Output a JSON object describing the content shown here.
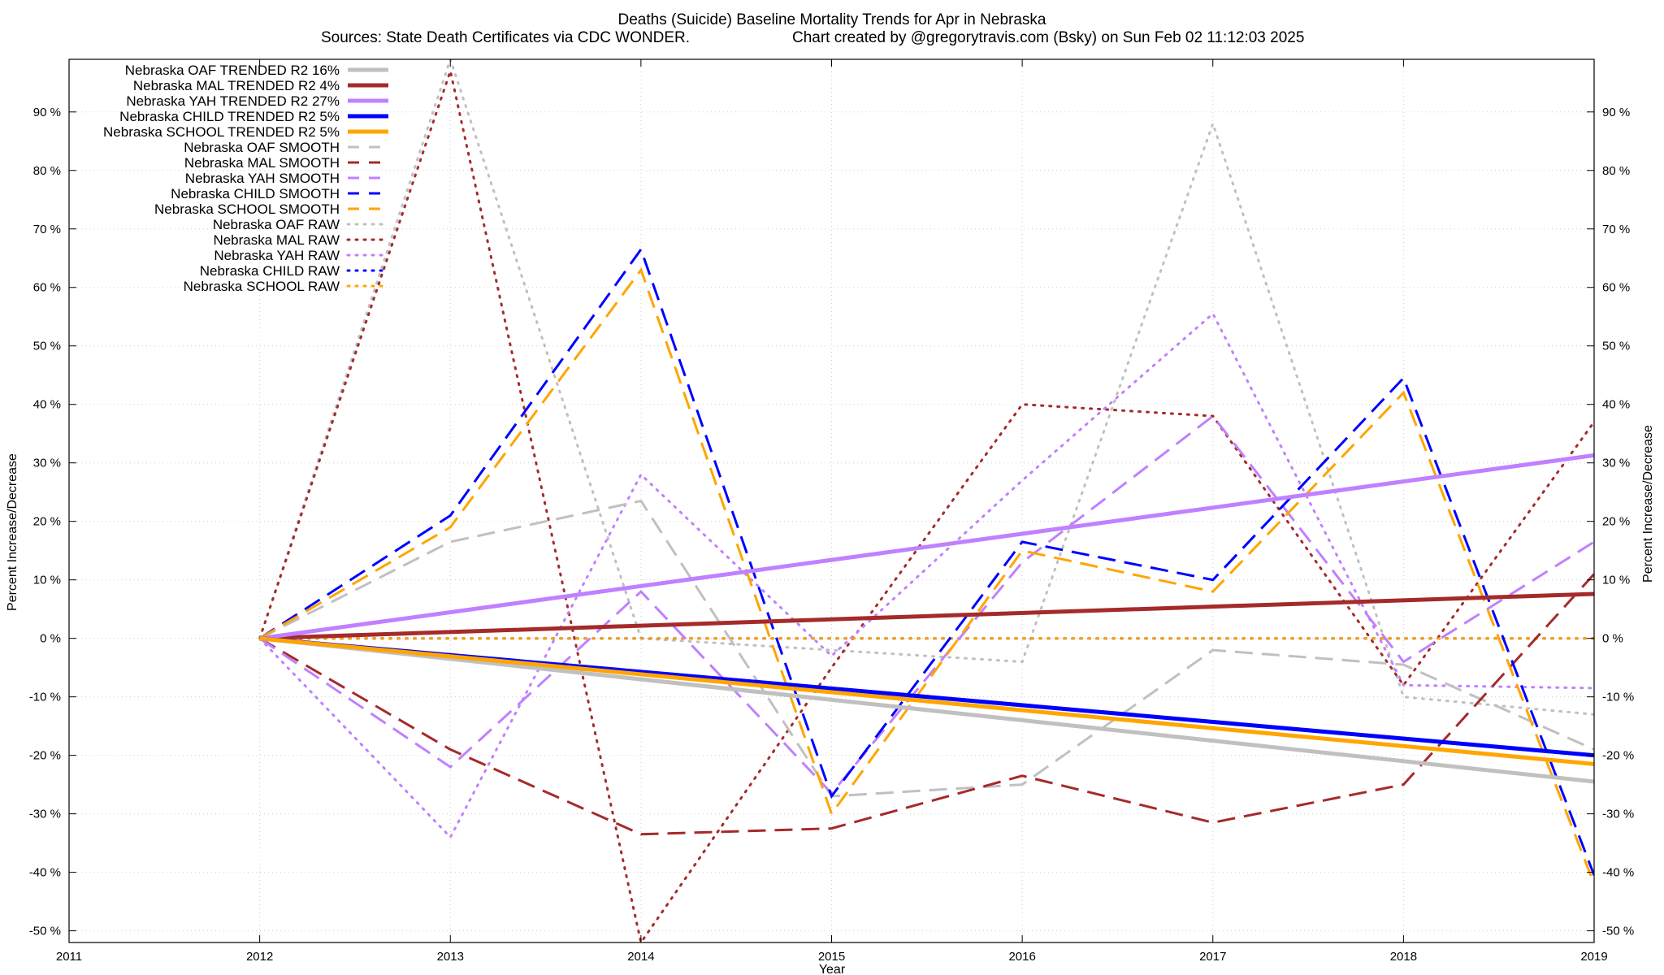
{
  "chart_data": {
    "type": "line",
    "title": "Deaths (Suicide)  Baseline Mortality Trends for Apr in Nebraska",
    "subtitle_left": "Sources: State Death Certificates via CDC WONDER.",
    "subtitle_right": "Chart created by @gregorytravis.com (Bsky) on Sun Feb 02 11:12:03 2025",
    "xlabel": "Year",
    "ylabel_left": "Percent Increase/Decrease",
    "ylabel_right": "Percent Increase/Decrease",
    "xlim": [
      2011,
      2019
    ],
    "ylim": [
      -52,
      99
    ],
    "x_ticks": [
      "2011",
      "2012",
      "2013",
      "2014",
      "2015",
      "2016",
      "2017",
      "2018",
      "2019"
    ],
    "y_ticks": [
      "-50 %",
      "-40 %",
      "-30 %",
      "-20 %",
      "-10 %",
      "0 %",
      "10 %",
      "20 %",
      "30 %",
      "40 %",
      "50 %",
      "60 %",
      "70 %",
      "80 %",
      "90 %"
    ],
    "y_tick_values": [
      -50,
      -40,
      -30,
      -20,
      -10,
      0,
      10,
      20,
      30,
      40,
      50,
      60,
      70,
      80,
      90
    ],
    "grid": true,
    "legend_position": "top-left",
    "series": [
      {
        "name": "Nebraska OAF TRENDED R2  16%",
        "style": "solid",
        "color": "#c0c0c0",
        "x": [
          2012,
          2019
        ],
        "values": [
          0,
          -24.5
        ]
      },
      {
        "name": "Nebraska MAL TRENDED R2   4%",
        "style": "solid",
        "color": "#a52a2a",
        "x": [
          2012,
          2019
        ],
        "values": [
          0,
          7.6
        ]
      },
      {
        "name": "Nebraska YAH TRENDED R2  27%",
        "style": "solid",
        "color": "#c080ff",
        "x": [
          2012,
          2019
        ],
        "values": [
          0,
          31.3
        ]
      },
      {
        "name": "Nebraska CHILD TRENDED R2   5%",
        "style": "solid",
        "color": "#0000ff",
        "x": [
          2012,
          2019
        ],
        "values": [
          0,
          -20
        ]
      },
      {
        "name": "Nebraska SCHOOL TRENDED R2   5%",
        "style": "solid",
        "color": "#ffa500",
        "x": [
          2012,
          2019
        ],
        "values": [
          0,
          -21.5
        ]
      },
      {
        "name": "Nebraska OAF SMOOTH",
        "style": "dashed",
        "color": "#c0c0c0",
        "x": [
          2012,
          2013,
          2014,
          2015,
          2016,
          2017,
          2018,
          2019
        ],
        "values": [
          0,
          16.5,
          23.5,
          -27,
          -25,
          -2,
          -4.5,
          -19
        ]
      },
      {
        "name": "Nebraska MAL SMOOTH",
        "style": "dashed",
        "color": "#a52a2a",
        "x": [
          2012,
          2013,
          2014,
          2015,
          2016,
          2017,
          2018,
          2019
        ],
        "values": [
          0,
          -19,
          -33.5,
          -32.5,
          -23.5,
          -31.5,
          -25,
          11
        ]
      },
      {
        "name": "Nebraska YAH SMOOTH",
        "style": "dashed",
        "color": "#c080ff",
        "x": [
          2012,
          2013,
          2014,
          2015,
          2016,
          2017,
          2018,
          2019
        ],
        "values": [
          0,
          -22,
          8,
          -26.5,
          13,
          38,
          -4,
          16.5
        ]
      },
      {
        "name": "Nebraska CHILD SMOOTH",
        "style": "dashed",
        "color": "#0000ff",
        "x": [
          2012,
          2013,
          2014,
          2015,
          2016,
          2017,
          2018,
          2019
        ],
        "values": [
          0,
          21,
          66.5,
          -27,
          16.5,
          10,
          44.5,
          -40.5
        ]
      },
      {
        "name": "Nebraska SCHOOL SMOOTH",
        "style": "dashed",
        "color": "#ffa500",
        "x": [
          2012,
          2013,
          2014,
          2015,
          2016,
          2017,
          2018,
          2019
        ],
        "values": [
          0,
          19,
          63,
          -30,
          15,
          8,
          42,
          -42
        ]
      },
      {
        "name": "Nebraska OAF RAW",
        "style": "dotted",
        "color": "#c0c0c0",
        "x": [
          2012,
          2013,
          2014,
          2015,
          2016,
          2017,
          2018,
          2019
        ],
        "values": [
          0,
          99,
          0,
          -2,
          -4,
          88,
          -10,
          -13
        ]
      },
      {
        "name": "Nebraska MAL RAW",
        "style": "dotted",
        "color": "#a52a2a",
        "x": [
          2012,
          2013,
          2014,
          2015,
          2016,
          2017,
          2018,
          2019
        ],
        "values": [
          0,
          97,
          -52,
          -5,
          40,
          38,
          -8,
          37
        ]
      },
      {
        "name": "Nebraska YAH RAW",
        "style": "dotted",
        "color": "#c080ff",
        "x": [
          2012,
          2013,
          2014,
          2015,
          2016,
          2017,
          2018,
          2019
        ],
        "values": [
          0,
          -34,
          28,
          -3,
          27,
          55.5,
          -8,
          -8.5
        ]
      },
      {
        "name": "Nebraska CHILD RAW",
        "style": "dotted",
        "color": "#0000ff",
        "x": [
          2012,
          2013,
          2014,
          2015,
          2016,
          2017,
          2018,
          2019
        ],
        "values": [
          0,
          0,
          0,
          0,
          0,
          0,
          0,
          0
        ]
      },
      {
        "name": "Nebraska SCHOOL RAW",
        "style": "dotted",
        "color": "#ffa500",
        "x": [
          2012,
          2013,
          2014,
          2015,
          2016,
          2017,
          2018,
          2019
        ],
        "values": [
          0,
          0,
          0,
          0,
          0,
          0,
          0,
          0
        ]
      }
    ]
  }
}
